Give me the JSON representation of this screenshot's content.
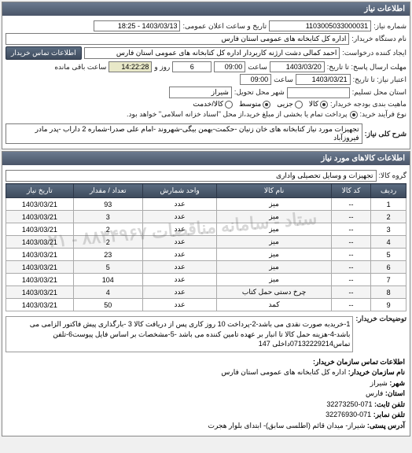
{
  "panels": {
    "info": {
      "title": "اطلاعات نیاز"
    }
  },
  "header": {
    "request_no_label": "شماره نیاز:",
    "request_no": "1103005033000031",
    "datetime_label": "تاریخ و ساعت اعلان عمومی:",
    "datetime": "1403/03/13 - 18:25",
    "org_label": "نام دستگاه خریدار:",
    "org": "اداره کل کتابخانه های عمومی استان فارس",
    "requester_label": "ایجاد کننده درخواست:",
    "requester": "احمد  کمالی دشت ارژنه  کاربردار اداره کل کتابخانه های عمومی استان فارس",
    "contact_btn": "اطلاعات تماس خریدار"
  },
  "deadlines": {
    "send_from_label": "مهلت ارسال پاسخ: تا تاریخ:",
    "send_from_date": "1403/03/20",
    "time_label": "ساعت",
    "send_time": "09:00",
    "days_label": "روز و",
    "days": "6",
    "remain_time": "14:22:28",
    "remain_label": "ساعت باقی مانده",
    "valid_to_label": "اعتبار نیاز: تا تاریخ:",
    "valid_to_date": "1403/03/21",
    "valid_time": "09:00"
  },
  "location": {
    "province_label": "استان محل تسلیم:",
    "city_label": "شهر محل تحویل:",
    "city": "شیراز"
  },
  "budget": {
    "label": "ماهیت بندی بودجه خریدار:",
    "options": [
      {
        "label": "کالا",
        "checked": true
      },
      {
        "label": "جزیی",
        "checked": false
      },
      {
        "label": "متوسط",
        "checked": true
      },
      {
        "label": "کالا/خدمت",
        "checked": false
      }
    ]
  },
  "process": {
    "label": "نوع فرآیند خرید:",
    "note": "پرداخت تمام یا بخشی از مبلغ خرید،از محل \"اسناد خزانه اسلامی\" خواهد بود."
  },
  "need": {
    "title_label": "شرح کلی نیاز:",
    "title": "تجهیزات مورد نیاز کتابخانه های خان زنیان -حکمت-بهمن بیگی-شهروند -امام علی صدرا-شماره 2 داراب -پدر مادر فیروزآباد"
  },
  "goods_panel": {
    "title": "اطلاعات کالاهای مورد نیاز",
    "group_label": "گروه کالا:",
    "group": "تجهیزات و وسایل تحصیلی واداری"
  },
  "table": {
    "headers": [
      "ردیف",
      "کد کالا",
      "نام کالا",
      "واحد شمارش",
      "تعداد / مقدار",
      "تاریخ نیاز"
    ],
    "rows": [
      [
        "1",
        "--",
        "میز",
        "عدد",
        "93",
        "1403/03/21"
      ],
      [
        "2",
        "--",
        "میز",
        "عدد",
        "3",
        "1403/03/21"
      ],
      [
        "3",
        "--",
        "میز",
        "عدد",
        "2",
        "1403/03/21"
      ],
      [
        "4",
        "--",
        "میز",
        "عدد",
        "2",
        "1403/03/21"
      ],
      [
        "5",
        "--",
        "میز",
        "عدد",
        "23",
        "1403/03/21"
      ],
      [
        "6",
        "--",
        "میز",
        "عدد",
        "5",
        "1403/03/21"
      ],
      [
        "7",
        "--",
        "میز",
        "عدد",
        "104",
        "1403/03/21"
      ],
      [
        "8",
        "--",
        "چرخ دستی حمل کتاب",
        "عدد",
        "4",
        "1403/03/21"
      ],
      [
        "9",
        "--",
        "کمد",
        "عدد",
        "50",
        "1403/03/21"
      ]
    ]
  },
  "description": {
    "label": "توضیحات خریدار:",
    "text": "1-خریدبه صورت نقدی می باشد-2-پرداخت 10 روز کاری پس از دریافت کالا 3 -بارگذاری پیش فاکتور الزامی  می باشد-4-هزینه حمل کالا تا انبار بر عهده تامین کننده می باشد -5-مشخصات بر اساس فایل پیوست6-تلفن تماس07132229214داخلی 147"
  },
  "contact": {
    "title": "اطلاعات تماس سازمان خریدار:",
    "org_label": "نام سازمان خریدار:",
    "org": "اداره کل کتابخانه های عمومی استان فارس",
    "city_label": "شهر:",
    "city": "شیراز",
    "province_label": "استان:",
    "province": "فارس",
    "phone_label": "تلفن ثابت:",
    "phone": "071-32273250",
    "fax_label": "تلفن نمابر:",
    "fax": "071-32276930",
    "address_label": "آدرس پستی:",
    "address": "شیراز- میدان قائم (اطلسی سابق)- ابتدای بلوار هجرت"
  },
  "watermark": "ستاد - سامانه مناقصات ۸۸۳۴۹۶۷ - ۰۲۱"
}
